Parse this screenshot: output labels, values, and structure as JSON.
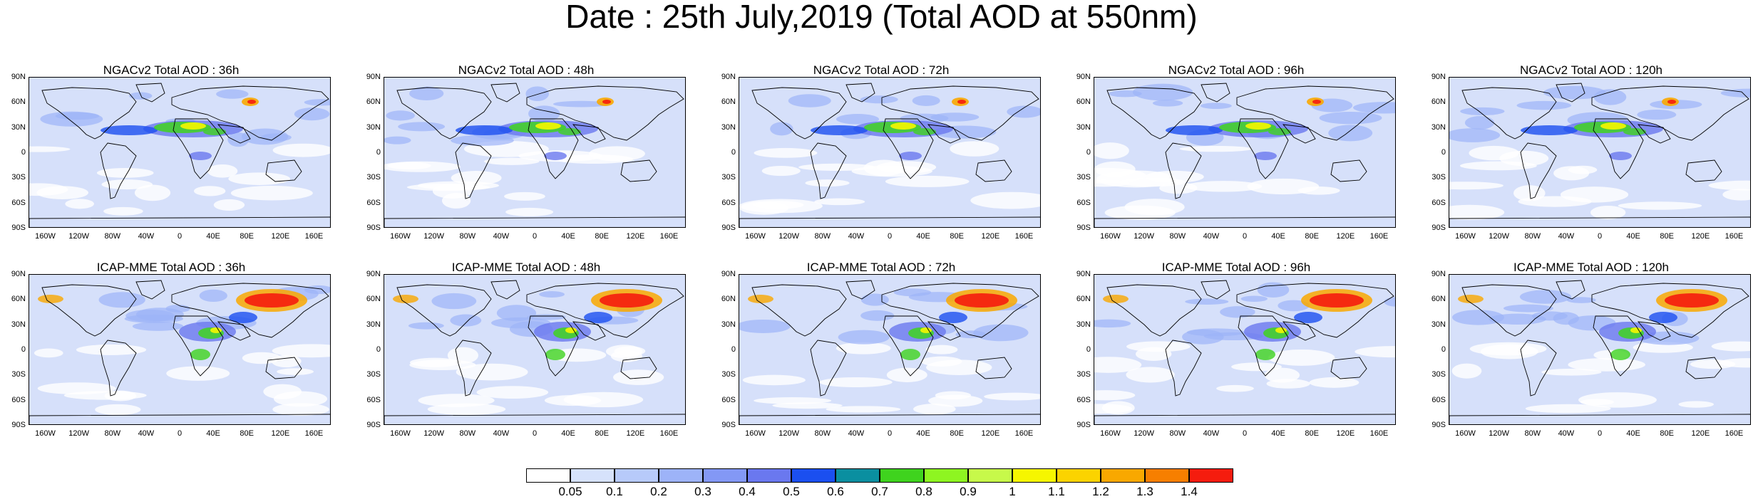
{
  "title": "Date : 25th July,2019 (Total AOD at 550nm)",
  "panels": [
    {
      "title": "NGACv2 Total AOD : 36h",
      "model": "ngac"
    },
    {
      "title": "NGACv2 Total AOD : 48h",
      "model": "ngac"
    },
    {
      "title": "NGACv2 Total AOD : 72h",
      "model": "ngac"
    },
    {
      "title": "NGACv2 Total AOD : 96h",
      "model": "ngac"
    },
    {
      "title": "NGACv2 Total AOD : 120h",
      "model": "ngac"
    },
    {
      "title": "ICAP-MME Total AOD : 36h",
      "model": "icap"
    },
    {
      "title": "ICAP-MME Total AOD : 48h",
      "model": "icap"
    },
    {
      "title": "ICAP-MME Total AOD : 72h",
      "model": "icap"
    },
    {
      "title": "ICAP-MME Total AOD : 96h",
      "model": "icap"
    },
    {
      "title": "ICAP-MME Total AOD : 120h",
      "model": "icap"
    }
  ],
  "lat_labels": [
    "90N",
    "60N",
    "30N",
    "0",
    "30S",
    "60S",
    "90S"
  ],
  "lon_labels": [
    "160W",
    "120W",
    "80W",
    "40W",
    "0",
    "40E",
    "80E",
    "120E",
    "160E"
  ],
  "colorbar": {
    "colors": [
      "#ffffff",
      "#d6e2fb",
      "#b7cafa",
      "#9db3f8",
      "#8398f5",
      "#6a78ef",
      "#1b4ff0",
      "#0a8fa0",
      "#3fd31e",
      "#8ef521",
      "#c7f94a",
      "#f6f600",
      "#fbd300",
      "#f9a800",
      "#f77f00",
      "#f51c0e"
    ],
    "labels": [
      "0.05",
      "0.1",
      "0.2",
      "0.3",
      "0.4",
      "0.5",
      "0.6",
      "0.7",
      "0.8",
      "0.9",
      "1",
      "1.1",
      "1.2",
      "1.3",
      "1.4"
    ]
  },
  "map_colors": {
    "background": "#d6e0fa",
    "light": "#ffffff",
    "mid": "#9db3f8",
    "deep": "#6a78ef",
    "blue": "#1b4ff0",
    "green": "#3fd31e",
    "yellow": "#f6f600",
    "orange": "#f9a800",
    "red": "#f51c0e",
    "coast": "#000000"
  }
}
